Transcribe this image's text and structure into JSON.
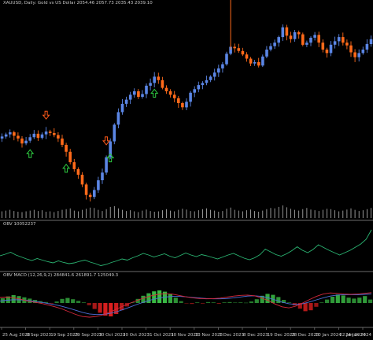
{
  "header": {
    "main": "XAUUSD, Daily: Gold vs US Dollar 2054.46 2057.73 2035.43 2039.10",
    "obv": "OBV 10052237",
    "macd": "OBV MACD (12,26,9,2) 284841.6 261891.7 125049.3"
  },
  "chart_data": {
    "type": "candlestick",
    "colors": {
      "bull": "#5b86e5",
      "bear": "#ff6a1a",
      "up_arrow": "#2ecc40",
      "down_arrow": "#ff5a1a",
      "obv_line": "#2bb673",
      "macd_up": "#3ec94a",
      "macd_down": "#e02020",
      "signal_red": "#d6283c",
      "signal_blue": "#4f6fd8"
    },
    "x_ticks": [
      "25 Aug 2023",
      "8 Sep 2023",
      "19 Sep 2023",
      "29 Sep 2023",
      "10 Oct 2023",
      "20 Oct 2023",
      "31 Oct 2023",
      "10 Nov 2023",
      "13 Nov 2023",
      "1 Dec 2023",
      "8 Dec 2023",
      "19 Dec 2023",
      "28 Dec 2023",
      "10 Jan 2024",
      "22 Jan 2024",
      "24 Jan 2024"
    ],
    "price_path": [
      1915,
      1918,
      1921,
      1916,
      1912,
      1905,
      1909,
      1914,
      1919,
      1913,
      1918,
      1922,
      1920,
      1917,
      1912,
      1903,
      1893,
      1878,
      1868,
      1860,
      1846,
      1831,
      1828,
      1838,
      1852,
      1863,
      1885,
      1908,
      1932,
      1950,
      1962,
      1968,
      1975,
      1980,
      1972,
      1976,
      1988,
      1992,
      2001,
      1996,
      1985,
      1980,
      1975,
      1970,
      1963,
      1957,
      1965,
      1978,
      1983,
      1989,
      1992,
      1996,
      2001,
      2007,
      2013,
      2019,
      2034,
      2044,
      2042,
      2038,
      2033,
      2027,
      2020,
      2022,
      2017,
      2030,
      2040,
      2045,
      2050,
      2058,
      2072,
      2060,
      2055,
      2065,
      2062,
      2047,
      2050,
      2057,
      2061,
      2050,
      2040,
      2035,
      2047,
      2052,
      2058,
      2050,
      2046,
      2036,
      2029,
      2035,
      2040,
      2048,
      2055
    ],
    "volumes": [
      18,
      20,
      22,
      19,
      17,
      16,
      18,
      20,
      22,
      19,
      21,
      17,
      18,
      16,
      19,
      22,
      24,
      26,
      20,
      18,
      22,
      25,
      28,
      27,
      22,
      19,
      24,
      30,
      32,
      26,
      22,
      19,
      21,
      18,
      16,
      20,
      23,
      19,
      17,
      18,
      21,
      24,
      20,
      18,
      22,
      25,
      23,
      19,
      18,
      21,
      24,
      26,
      22,
      20,
      17,
      19,
      25,
      28,
      22,
      20,
      18,
      21,
      23,
      19,
      17,
      20,
      24,
      27,
      26,
      30,
      34,
      29,
      25,
      22,
      20,
      24,
      27,
      23,
      21,
      19,
      22,
      25,
      24,
      21,
      18,
      20,
      23,
      26,
      22,
      19,
      21,
      24,
      27
    ],
    "obv_path": [
      0.3,
      0.34,
      0.39,
      0.32,
      0.27,
      0.22,
      0.18,
      0.23,
      0.19,
      0.15,
      0.12,
      0.17,
      0.13,
      0.1,
      0.12,
      0.16,
      0.19,
      0.14,
      0.1,
      0.05,
      0.08,
      0.13,
      0.17,
      0.22,
      0.19,
      0.25,
      0.3,
      0.36,
      0.32,
      0.27,
      0.31,
      0.35,
      0.29,
      0.25,
      0.31,
      0.37,
      0.32,
      0.28,
      0.33,
      0.3,
      0.26,
      0.22,
      0.27,
      0.32,
      0.36,
      0.3,
      0.24,
      0.2,
      0.25,
      0.33,
      0.47,
      0.4,
      0.33,
      0.29,
      0.35,
      0.43,
      0.53,
      0.44,
      0.38,
      0.46,
      0.58,
      0.51,
      0.44,
      0.38,
      0.32,
      0.38,
      0.44,
      0.52,
      0.6,
      0.72,
      0.96
    ],
    "macd_hist": [
      0.3,
      0.42,
      0.5,
      0.44,
      0.36,
      0.28,
      0.2,
      0.12,
      0.06,
      -0.04,
      0.1,
      0.26,
      0.32,
      0.24,
      0.14,
      0.04,
      -0.14,
      -0.38,
      -0.62,
      -0.8,
      -0.85,
      -0.7,
      -0.46,
      -0.22,
      0.04,
      0.26,
      0.46,
      0.62,
      0.74,
      0.8,
      0.72,
      0.56,
      0.34,
      0.12,
      -0.02,
      -0.06,
      0.04,
      -0.04,
      0.06,
      0.04,
      -0.05,
      0.04,
      0.06,
      0.03,
      0.04,
      0.02,
      0.1,
      0.24,
      0.46,
      0.58,
      0.52,
      0.38,
      0.2,
      0.04,
      -0.16,
      -0.36,
      -0.52,
      -0.46,
      -0.24,
      0.04,
      0.22,
      0.4,
      0.54,
      0.48,
      0.34,
      0.28,
      0.34,
      0.44,
      0.22
    ],
    "macd_red": [
      0.32,
      0.34,
      0.3,
      0.22,
      0.12,
      0.05,
      -0.02,
      -0.12,
      -0.22,
      -0.34,
      -0.5,
      -0.66,
      -0.78,
      -0.82,
      -0.78,
      -0.68,
      -0.52,
      -0.34,
      -0.16,
      0.0,
      0.16,
      0.3,
      0.42,
      0.5,
      0.54,
      0.52,
      0.44,
      0.36,
      0.3,
      0.26,
      0.24,
      0.25,
      0.28,
      0.34,
      0.4,
      0.44,
      0.46,
      0.42,
      0.3,
      0.14,
      -0.06,
      -0.22,
      -0.28,
      -0.18,
      0.0,
      0.2,
      0.38,
      0.52,
      0.58,
      0.56,
      0.52,
      0.5,
      0.52,
      0.56,
      0.6
    ],
    "macd_blue": [
      0.12,
      0.16,
      0.19,
      0.18,
      0.15,
      0.1,
      0.04,
      -0.03,
      -0.1,
      -0.19,
      -0.3,
      -0.42,
      -0.54,
      -0.63,
      -0.67,
      -0.66,
      -0.6,
      -0.5,
      -0.37,
      -0.22,
      -0.07,
      0.06,
      0.18,
      0.28,
      0.34,
      0.38,
      0.38,
      0.36,
      0.32,
      0.29,
      0.26,
      0.24,
      0.24,
      0.26,
      0.3,
      0.35,
      0.4,
      0.42,
      0.38,
      0.3,
      0.18,
      0.05,
      -0.04,
      -0.08,
      -0.04,
      0.06,
      0.18,
      0.3,
      0.4,
      0.46,
      0.48,
      0.48,
      0.48,
      0.5,
      0.52
    ],
    "signal_arrows_up": [
      7,
      16,
      27,
      38
    ],
    "signal_arrows_down": [
      11,
      26
    ]
  }
}
